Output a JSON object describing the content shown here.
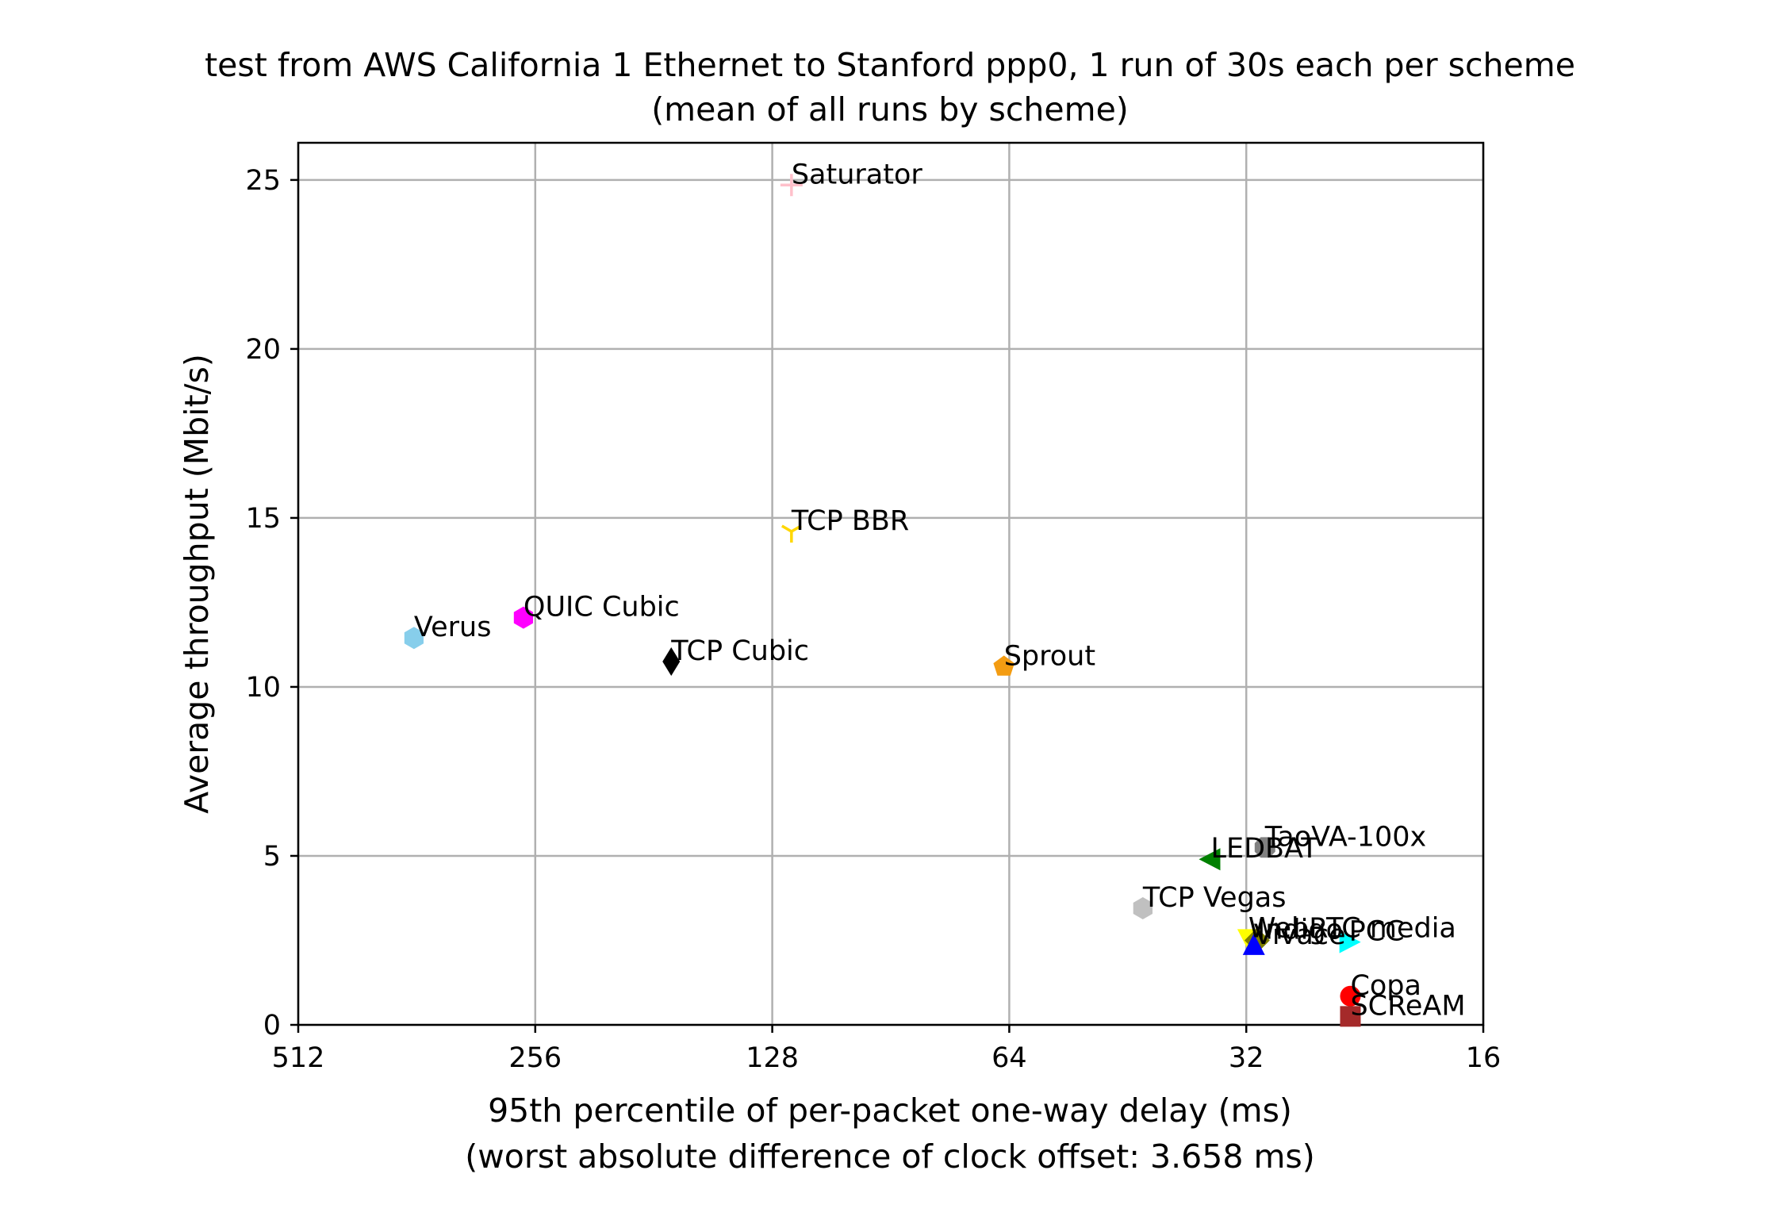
{
  "chart_data": {
    "type": "scatter",
    "title": "test from AWS California 1 Ethernet to Stanford ppp0, 1 run of 30s each per scheme",
    "subtitle": "(mean of all runs by scheme)",
    "xlabel": "95th percentile of per-packet one-way delay (ms)",
    "xlabel_sub": "(worst absolute difference of clock offset: 3.658 ms)",
    "ylabel": "Average throughput (Mbit/s)",
    "x_scale": "log2",
    "x_inverted": true,
    "xlim": [
      512,
      16
    ],
    "ylim": [
      0,
      26.1
    ],
    "grid": true,
    "x_ticks": [
      {
        "value": 512,
        "label": "512"
      },
      {
        "value": 256,
        "label": "256"
      },
      {
        "value": 128,
        "label": "128"
      },
      {
        "value": 64,
        "label": "64"
      },
      {
        "value": 32,
        "label": "32"
      },
      {
        "value": 16,
        "label": "16"
      }
    ],
    "y_ticks": [
      {
        "value": 0,
        "label": "0"
      },
      {
        "value": 5,
        "label": "5"
      },
      {
        "value": 10,
        "label": "10"
      },
      {
        "value": 15,
        "label": "15"
      },
      {
        "value": 20,
        "label": "20"
      },
      {
        "value": 25,
        "label": "25"
      }
    ],
    "points": [
      {
        "name": "Saturator",
        "x": 121,
        "y": 24.85,
        "marker": "plus",
        "color": "#ffc0cb"
      },
      {
        "name": "TCP BBR",
        "x": 121,
        "y": 14.6,
        "marker": "tri_down",
        "color": "#ffd700"
      },
      {
        "name": "QUIC Cubic",
        "x": 265,
        "y": 12.05,
        "marker": "hexagon",
        "color": "#ff00ff"
      },
      {
        "name": "Verus",
        "x": 365,
        "y": 11.45,
        "marker": "hexagon",
        "color": "#87ceeb"
      },
      {
        "name": "TCP Cubic",
        "x": 172,
        "y": 10.75,
        "marker": "thin_diamond",
        "color": "#000000"
      },
      {
        "name": "Sprout",
        "x": 65,
        "y": 10.6,
        "marker": "pentagon",
        "color": "#f39c12"
      },
      {
        "name": "TaoVA-100x",
        "x": 30.3,
        "y": 5.25,
        "marker": "octagon",
        "color": "#808080"
      },
      {
        "name": "LEDBAT",
        "x": 35.5,
        "y": 4.9,
        "marker": "triangle_left",
        "color": "#008000"
      },
      {
        "name": "TCP Vegas",
        "x": 43.3,
        "y": 3.45,
        "marker": "hexagon",
        "color": "#c0c0c0"
      },
      {
        "name": "WebRTC media",
        "x": 31.8,
        "y": 2.55,
        "marker": "triangle_down",
        "color": "#ffff00"
      },
      {
        "name": "Indigo",
        "x": 31.0,
        "y": 2.5,
        "marker": "diamond",
        "color": "#808000"
      },
      {
        "name": "PCC",
        "x": 23.7,
        "y": 2.45,
        "marker": "triangle_right",
        "color": "#00ffff"
      },
      {
        "name": "Vivace",
        "x": 31.3,
        "y": 2.35,
        "marker": "triangle_up",
        "color": "#0000ff"
      },
      {
        "name": "Copa",
        "x": 23.6,
        "y": 0.85,
        "marker": "circle",
        "color": "#ff0000"
      },
      {
        "name": "SCReAM",
        "x": 23.6,
        "y": 0.25,
        "marker": "square",
        "color": "#a52a2a"
      }
    ]
  }
}
